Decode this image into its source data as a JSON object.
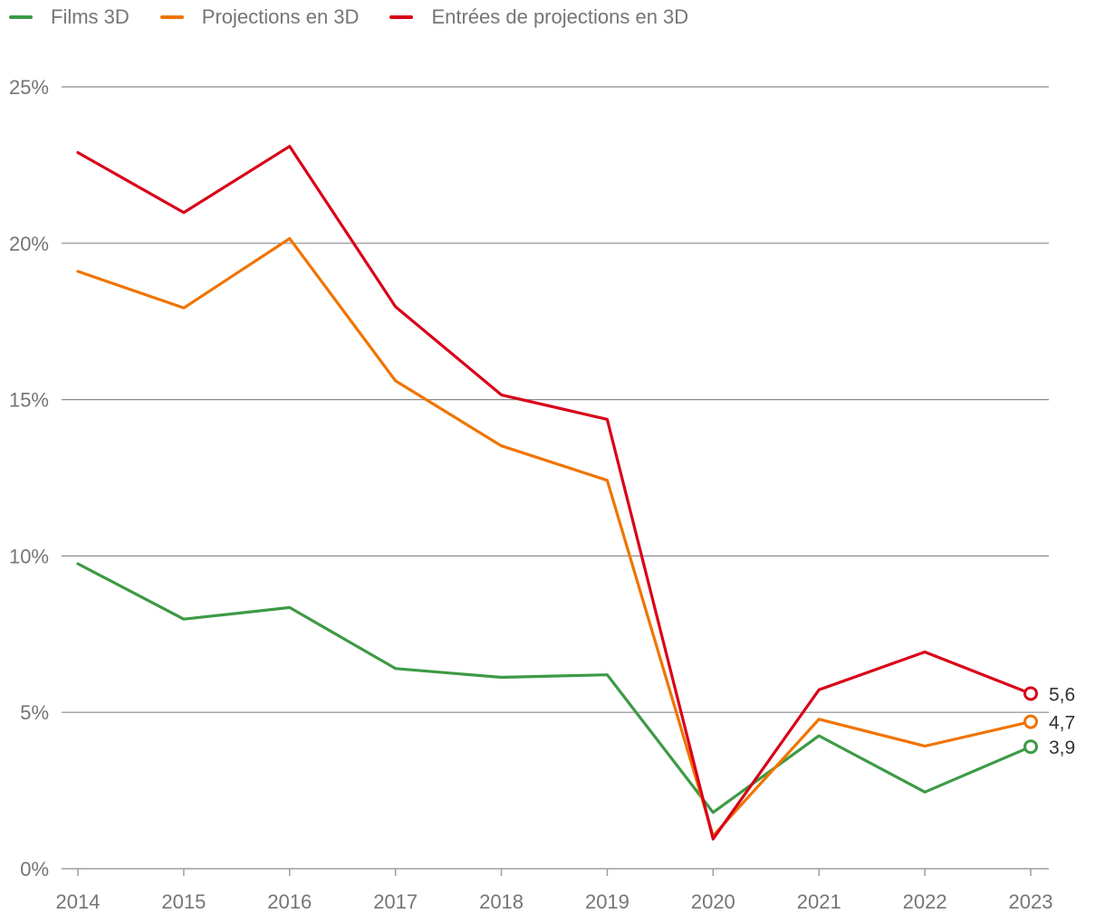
{
  "chart_data": {
    "type": "line",
    "title": "",
    "xlabel": "",
    "ylabel": "",
    "x": [
      "2014",
      "2015",
      "2016",
      "2017",
      "2018",
      "2019",
      "2020",
      "2021",
      "2022",
      "2023"
    ],
    "ylim": [
      0,
      25
    ],
    "yticks": [
      0,
      5,
      10,
      15,
      20,
      25
    ],
    "ytick_labels": [
      "0%",
      "5%",
      "10%",
      "15%",
      "20%",
      "25%"
    ],
    "grid": true,
    "legend_position": "top-left",
    "series": [
      {
        "name": "Films 3D",
        "color": "#3d9a45",
        "values": [
          9.75,
          7.98,
          8.35,
          6.4,
          6.12,
          6.2,
          1.8,
          4.25,
          2.45,
          3.9
        ],
        "end_label": "3,9"
      },
      {
        "name": "Projections en 3D",
        "color": "#f07400",
        "values": [
          19.1,
          17.93,
          20.15,
          15.6,
          13.52,
          12.42,
          1.05,
          4.78,
          3.92,
          4.7
        ],
        "end_label": "4,7"
      },
      {
        "name": "Entrées de projections en 3D",
        "color": "#d90019",
        "values": [
          22.9,
          20.98,
          23.1,
          17.97,
          15.15,
          14.37,
          0.95,
          5.72,
          6.93,
          5.6
        ],
        "end_label": "5,6"
      }
    ]
  }
}
